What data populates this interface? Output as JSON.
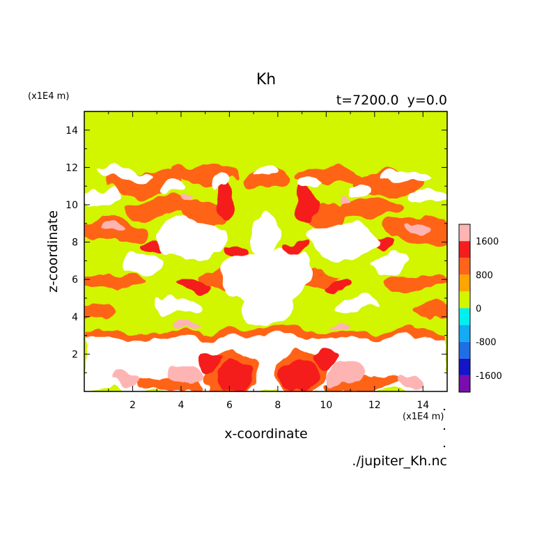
{
  "chart_data": {
    "type": "heatmap",
    "title": "Kh",
    "subtitle": "t=7200.0  y=0.0",
    "xlabel": "x-coordinate",
    "ylabel": "z-coordinate",
    "x_unit": "(x1E4 m)",
    "y_unit": "(x1E4 m)",
    "source": "./jupiter_Kh.nc",
    "xlim": [
      0,
      15
    ],
    "ylim": [
      0,
      15
    ],
    "x_ticks": [
      "2",
      "4",
      "6",
      "8",
      "10",
      "12",
      "14"
    ],
    "y_ticks": [
      "2",
      "4",
      "6",
      "8",
      "10",
      "12",
      "14"
    ],
    "colorbar": {
      "tick_labels": [
        "1600",
        "800",
        "0",
        "-800",
        "-1600"
      ],
      "levels": [
        {
          "max": -1600,
          "color": "#7a0dad"
        },
        {
          "max": -1200,
          "color": "#1414c8"
        },
        {
          "max": -800,
          "color": "#1e6ee6"
        },
        {
          "max": -400,
          "color": "#14aaf5"
        },
        {
          "max": 0,
          "color": "#00f0f0"
        },
        {
          "max": 400,
          "color": "#d2f500"
        },
        {
          "max": 800,
          "color": "#ffa500"
        },
        {
          "max": 1200,
          "color": "#ff6419"
        },
        {
          "max": 1600,
          "color": "#f51e1e"
        },
        {
          "max": 2000,
          "color": "#ffb4b4"
        }
      ],
      "above_max_color": "#ffffff"
    },
    "background_value_color": "#d2f500"
  }
}
